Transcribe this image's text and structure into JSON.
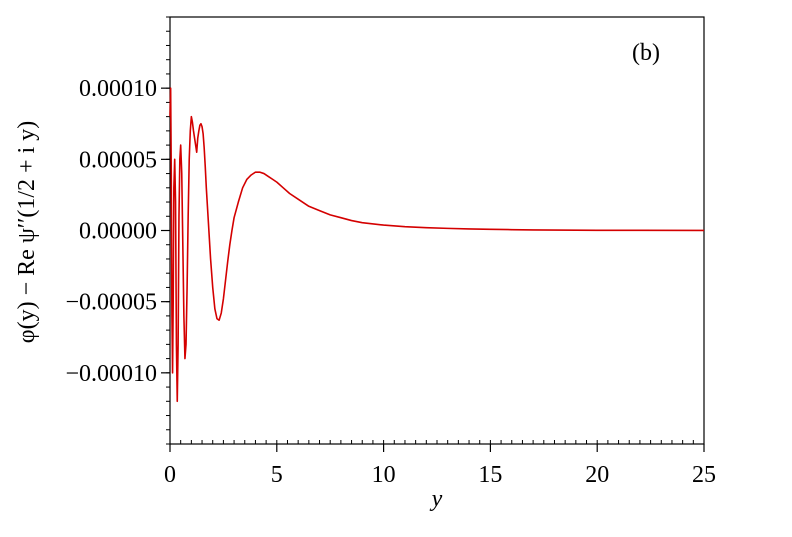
{
  "chart_data": {
    "type": "line",
    "panel_label": "(b)",
    "xlabel": "y",
    "ylabel": "φ(y) − Re ψ′′(1/2 + i y)",
    "xlim": [
      0,
      25
    ],
    "ylim": [
      -0.00015,
      0.00015
    ],
    "x_ticks": [
      0,
      5,
      10,
      15,
      20,
      25
    ],
    "x_tick_labels": [
      "0",
      "5",
      "10",
      "15",
      "20",
      "25"
    ],
    "y_ticks": [
      0.0001,
      5e-05,
      0,
      -5e-05,
      -0.0001
    ],
    "y_tick_labels": [
      "0.00010",
      "0.00005",
      "0.00000",
      "−0.00005",
      "−0.00010"
    ],
    "grid": false,
    "series": [
      {
        "color": "#d40000",
        "x": [
          0,
          0.03,
          0.06,
          0.09,
          0.12,
          0.15,
          0.18,
          0.22,
          0.26,
          0.3,
          0.34,
          0.38,
          0.42,
          0.46,
          0.5,
          0.55,
          0.6,
          0.65,
          0.7,
          0.75,
          0.8,
          0.85,
          0.9,
          0.95,
          1.0,
          1.05,
          1.1,
          1.15,
          1.2,
          1.25,
          1.3,
          1.35,
          1.4,
          1.45,
          1.5,
          1.55,
          1.6,
          1.65,
          1.7,
          1.8,
          1.9,
          2.0,
          2.1,
          2.2,
          2.3,
          2.4,
          2.5,
          2.6,
          2.7,
          2.8,
          2.9,
          3.0,
          3.2,
          3.4,
          3.6,
          3.8,
          4.0,
          4.2,
          4.4,
          4.6,
          4.8,
          5.0,
          5.3,
          5.6,
          6.0,
          6.5,
          7.0,
          7.5,
          8.0,
          8.5,
          9.0,
          10.0,
          11.0,
          12.0,
          13.0,
          14.0,
          15.0,
          16.0,
          17.0,
          18.0,
          19.0,
          20.0,
          22.0,
          25.0
        ],
        "y": [
          8e-05,
          0.0001,
          4e-05,
          -6e-05,
          -0.0001,
          -5e-05,
          3e-05,
          5e-05,
          2e-05,
          -8e-05,
          -0.00012,
          -8e-05,
          1e-05,
          5e-05,
          6e-05,
          4e-05,
          -1e-05,
          -6e-05,
          -9e-05,
          -8e-05,
          -4e-05,
          1e-05,
          5e-05,
          7e-05,
          8e-05,
          7.6e-05,
          7e-05,
          6.5e-05,
          6e-05,
          5.5e-05,
          6.5e-05,
          7e-05,
          7.4e-05,
          7.5e-05,
          7.3e-05,
          6.8e-05,
          5.8e-05,
          4.5e-05,
          3e-05,
          5e-06,
          -2e-05,
          -4e-05,
          -5.5e-05,
          -6.2e-05,
          -6.3e-05,
          -5.8e-05,
          -4.8e-05,
          -3.5e-05,
          -2.2e-05,
          -1e-05,
          0.0,
          9e-06,
          2e-05,
          3e-05,
          3.6e-05,
          3.9e-05,
          4.1e-05,
          4.1e-05,
          4e-05,
          3.8e-05,
          3.6e-05,
          3.4e-05,
          3e-05,
          2.6e-05,
          2.2e-05,
          1.7e-05,
          1.4e-05,
          1.1e-05,
          9e-06,
          7e-06,
          5.5e-06,
          3.8e-06,
          2.7e-06,
          2e-06,
          1.5e-06,
          1.1e-06,
          8e-07,
          6e-07,
          4e-07,
          3e-07,
          2e-07,
          1.5e-07,
          1e-07,
          5e-08
        ]
      }
    ]
  }
}
